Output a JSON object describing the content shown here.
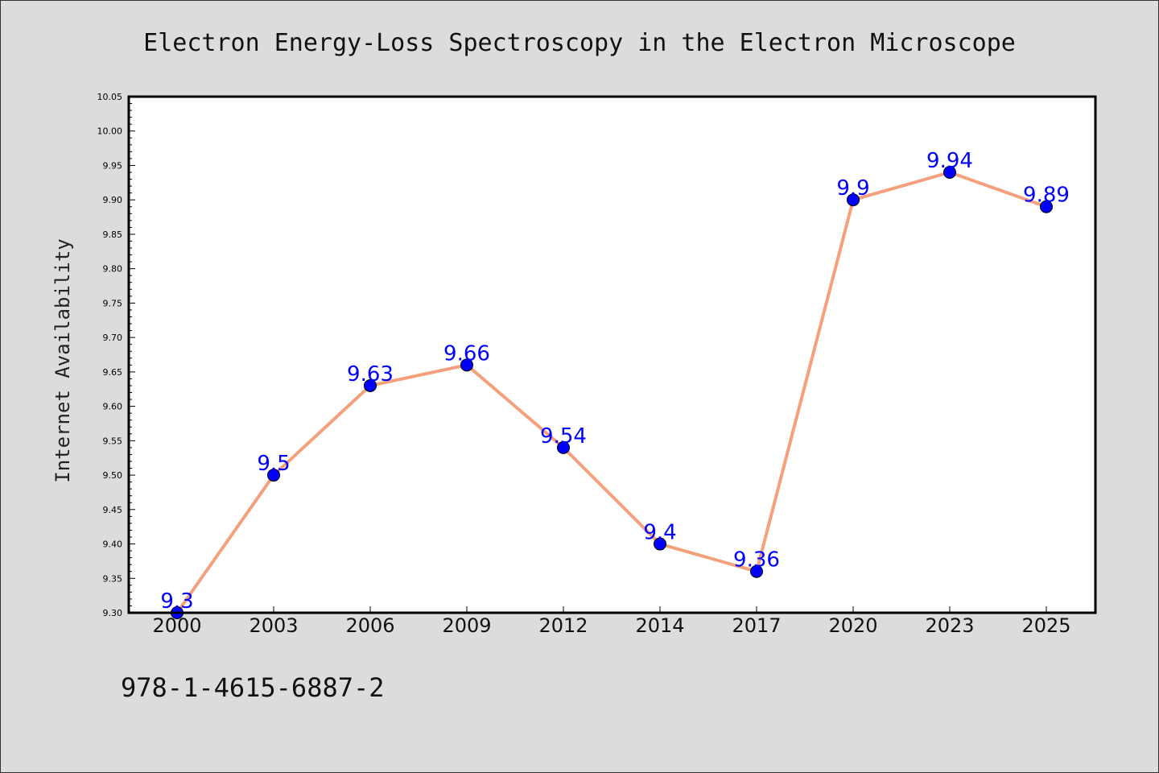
{
  "chart_data": {
    "type": "line",
    "title": "Electron Energy-Loss Spectroscopy in the Electron Microscope",
    "xlabel": "",
    "ylabel": "Internet Availability",
    "categories": [
      "2000",
      "2003",
      "2006",
      "2009",
      "2012",
      "2014",
      "2017",
      "2020",
      "2023",
      "2025"
    ],
    "series": [
      {
        "values": [
          9.3,
          9.5,
          9.63,
          9.66,
          9.54,
          9.4,
          9.36,
          9.9,
          9.94,
          9.89
        ]
      }
    ],
    "data_labels": [
      "9.3",
      "9.5",
      "9.63",
      "9.66",
      "9.54",
      "9.4",
      "9.36",
      "9.9",
      "9.94",
      "9.89"
    ],
    "ylim": [
      9.3,
      10.05
    ],
    "yticks": [
      "9.30",
      "9.35",
      "9.40",
      "9.45",
      "9.50",
      "9.55",
      "9.60",
      "9.65",
      "9.70",
      "9.75",
      "9.80",
      "9.85",
      "9.90",
      "9.95",
      "10.00",
      "10.05"
    ],
    "grid": false,
    "legend": "none",
    "colors": {
      "line": "#f4a07c",
      "marker": "#0000ff",
      "label": "#0000ff",
      "background": "#dcdcdc",
      "plot_background": "#ffffff"
    }
  },
  "footnote": "978-1-4615-6887-2"
}
